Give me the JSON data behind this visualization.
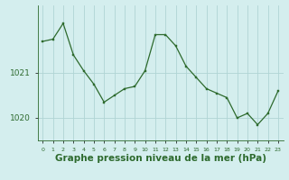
{
  "x": [
    0,
    1,
    2,
    3,
    4,
    5,
    6,
    7,
    8,
    9,
    10,
    11,
    12,
    13,
    14,
    15,
    16,
    17,
    18,
    19,
    20,
    21,
    22,
    23
  ],
  "y": [
    1021.7,
    1021.75,
    1022.1,
    1021.4,
    1021.05,
    1020.75,
    1020.35,
    1020.5,
    1020.65,
    1020.7,
    1021.05,
    1021.85,
    1021.85,
    1021.6,
    1021.15,
    1020.9,
    1020.65,
    1020.55,
    1020.45,
    1020.0,
    1020.1,
    1019.85,
    1020.1,
    1020.6
  ],
  "line_color": "#2d6a2d",
  "marker_color": "#2d6a2d",
  "bg_color": "#d4eeee",
  "grid_color": "#b0d4d4",
  "xlabel": "Graphe pression niveau de la mer (hPa)",
  "xlabel_fontsize": 7.5,
  "yticks": [
    1020,
    1021
  ],
  "ylim": [
    1019.5,
    1022.5
  ],
  "xlim": [
    -0.5,
    23.5
  ],
  "figsize": [
    3.2,
    2.0
  ],
  "dpi": 100
}
